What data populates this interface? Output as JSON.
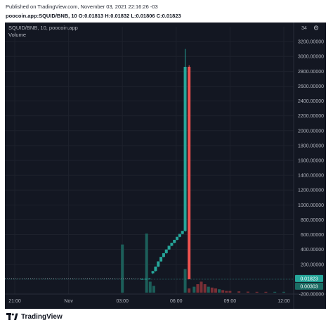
{
  "header": {
    "published": "Published on TradingView.com, November 03, 2021 22:16:26 -03",
    "ohlc": "poocoin.app:SQUID/BNB, 10 O:0.01813 H:0.01832 L:0.01806 C:0.01823"
  },
  "chart_data": {
    "type": "candlestick",
    "symbol_label": "SQUID/BNB, 10, poocoin.app",
    "volume_label": "Volume",
    "scale_badge": "34",
    "ylim": [
      -200,
      3400
    ],
    "y_ticks": [
      -200,
      0,
      200,
      400,
      600,
      800,
      1000,
      1200,
      1400,
      1600,
      1800,
      2000,
      2200,
      2400,
      2600,
      2800,
      3000,
      3200
    ],
    "y_tick_labels": [
      "-200.00000",
      "",
      "200.00000",
      "400.00000",
      "600.00000",
      "800.00000",
      "1000.00000",
      "1200.00000",
      "1400.00000",
      "1600.00000",
      "1800.00000",
      "2000.00000",
      "2200.00000",
      "2400.00000",
      "2600.00000",
      "2800.00000",
      "3000.00000",
      "3200.00000"
    ],
    "x_ticks": [
      {
        "label": "21:00",
        "t": 0
      },
      {
        "label": "Nov",
        "t": 3
      },
      {
        "label": "03:00",
        "t": 6
      },
      {
        "label": "06:00",
        "t": 9
      },
      {
        "label": "09:00",
        "t": 12
      },
      {
        "label": "12:00",
        "t": 15
      }
    ],
    "xlim_hours": [
      -0.55,
      15.55
    ],
    "price_label": "0.01823",
    "price_value": 0.01823,
    "secondary_label": "0.00303",
    "secondary_value": 0.00303,
    "candles": [
      {
        "t": 7.1,
        "o": 0,
        "h": 10,
        "l": 0,
        "c": 3,
        "color": "up"
      },
      {
        "t": 7.3,
        "o": 3,
        "h": 8,
        "l": 1,
        "c": 5,
        "color": "up"
      },
      {
        "t": 7.5,
        "o": 5,
        "h": 12,
        "l": 4,
        "c": 8,
        "color": "up"
      },
      {
        "t": 7.7,
        "o": 80,
        "h": 110,
        "l": 70,
        "c": 110,
        "color": "up"
      },
      {
        "t": 7.85,
        "o": 110,
        "h": 170,
        "l": 105,
        "c": 170,
        "color": "up"
      },
      {
        "t": 8.0,
        "o": 170,
        "h": 240,
        "l": 165,
        "c": 240,
        "color": "up"
      },
      {
        "t": 8.15,
        "o": 240,
        "h": 300,
        "l": 235,
        "c": 300,
        "color": "up"
      },
      {
        "t": 8.3,
        "o": 300,
        "h": 350,
        "l": 295,
        "c": 350,
        "color": "up"
      },
      {
        "t": 8.45,
        "o": 350,
        "h": 400,
        "l": 345,
        "c": 400,
        "color": "up"
      },
      {
        "t": 8.6,
        "o": 400,
        "h": 450,
        "l": 395,
        "c": 450,
        "color": "up"
      },
      {
        "t": 8.75,
        "o": 450,
        "h": 490,
        "l": 445,
        "c": 490,
        "color": "up"
      },
      {
        "t": 8.9,
        "o": 490,
        "h": 530,
        "l": 485,
        "c": 530,
        "color": "up"
      },
      {
        "t": 9.05,
        "o": 530,
        "h": 570,
        "l": 525,
        "c": 570,
        "color": "up"
      },
      {
        "t": 9.2,
        "o": 570,
        "h": 610,
        "l": 565,
        "c": 610,
        "color": "up"
      },
      {
        "t": 9.35,
        "o": 610,
        "h": 650,
        "l": 605,
        "c": 650,
        "color": "up"
      },
      {
        "t": 9.5,
        "o": 650,
        "h": 3100,
        "l": 640,
        "c": 2860,
        "color": "up"
      },
      {
        "t": 9.72,
        "o": 2860,
        "h": 2880,
        "l": 0,
        "c": 0.018,
        "color": "down"
      }
    ],
    "volume": [
      {
        "t": 6.0,
        "v": 57,
        "color": "up"
      },
      {
        "t": 7.35,
        "v": 70,
        "color": "up"
      },
      {
        "t": 7.55,
        "v": 13,
        "color": "up"
      },
      {
        "t": 7.75,
        "v": 8,
        "color": "up"
      },
      {
        "t": 9.5,
        "v": 28,
        "color": "up"
      },
      {
        "t": 9.72,
        "v": 5,
        "color": "down"
      },
      {
        "t": 10.0,
        "v": 7,
        "color": "up"
      },
      {
        "t": 10.2,
        "v": 10,
        "color": "down"
      },
      {
        "t": 10.4,
        "v": 13,
        "color": "down"
      },
      {
        "t": 10.6,
        "v": 10,
        "color": "down"
      },
      {
        "t": 10.8,
        "v": 7,
        "color": "up"
      },
      {
        "t": 11.0,
        "v": 6,
        "color": "down"
      },
      {
        "t": 11.2,
        "v": 5,
        "color": "down"
      },
      {
        "t": 11.4,
        "v": 4,
        "color": "up"
      },
      {
        "t": 11.6,
        "v": 3,
        "color": "down"
      },
      {
        "t": 11.8,
        "v": 2,
        "color": "down"
      },
      {
        "t": 12.0,
        "v": 2,
        "color": "down"
      },
      {
        "t": 12.5,
        "v": 1.5,
        "color": "down"
      },
      {
        "t": 13.0,
        "v": 1.2,
        "color": "down"
      },
      {
        "t": 13.5,
        "v": 1,
        "color": "down"
      },
      {
        "t": 14.0,
        "v": 1,
        "color": "down"
      },
      {
        "t": 14.5,
        "v": 1,
        "color": "up"
      },
      {
        "t": 15.0,
        "v": 1,
        "color": "up"
      }
    ],
    "colors": {
      "background": "#131722",
      "grid": "#1e222d",
      "up": "#26a69a",
      "down": "#ef5350",
      "up_volume": "#1c5f5a",
      "down_volume": "#7a2f36",
      "text": "#b2b5be",
      "price_badge": "#26a69a"
    },
    "grid": true
  },
  "brand": {
    "name": "TradingView",
    "icon": "tradingview-logo-icon"
  }
}
